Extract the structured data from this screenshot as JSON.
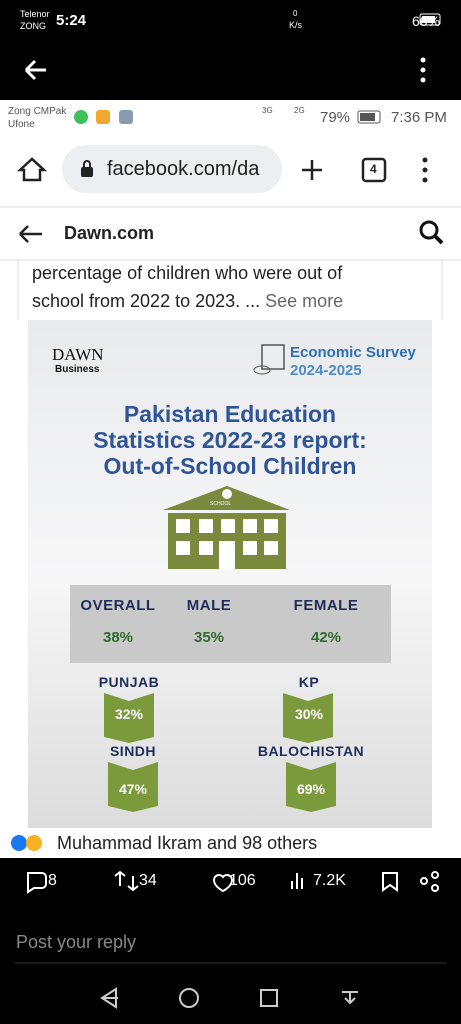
{
  "status_bar": {
    "carrier1": "Telenor",
    "carrier2": "ZONG",
    "time": "5:24",
    "speed_value": "0",
    "speed_unit": "K/s",
    "battery": "66%"
  },
  "inner_status_bar": {
    "carrier1": "Zong CMPak",
    "carrier2": "Ufone",
    "net1": "3G",
    "net2": "2G",
    "battery": "79%",
    "time": "7:36 PM"
  },
  "browser": {
    "url": "facebook.com/da",
    "tab_count": "4"
  },
  "page_header": {
    "title": "Dawn.com"
  },
  "post": {
    "line1": "percentage of children who were out of",
    "line2": "school from 2022 to 2023. ...",
    "see_more": "See more"
  },
  "infographic": {
    "brand": "DAWN",
    "brand_sub": "Business",
    "survey": "Economic Survey",
    "survey_years": "2024-2025",
    "title_lines": [
      "Pakistan Education",
      "Statistics 2022-23 report:",
      "Out-of-School Children"
    ],
    "building_sign": "SCHOOL",
    "summary": [
      {
        "label": "OVERALL",
        "value": "38%"
      },
      {
        "label": "MALE",
        "value": "35%"
      },
      {
        "label": "FEMALE",
        "value": "42%"
      }
    ],
    "provinces": [
      {
        "label": "PUNJAB",
        "value": "32%"
      },
      {
        "label": "KP",
        "value": "30%"
      },
      {
        "label": "SINDH",
        "value": "47%"
      },
      {
        "label": "BALOCHISTAN",
        "value": "69%"
      }
    ]
  },
  "reactions": {
    "text": "Muhammad Ikram and 98 others"
  },
  "tweet_stats": {
    "replies": "8",
    "reposts": "34",
    "likes": "106",
    "views": "7.2K"
  },
  "reply_box": {
    "placeholder": "Post your reply"
  }
}
